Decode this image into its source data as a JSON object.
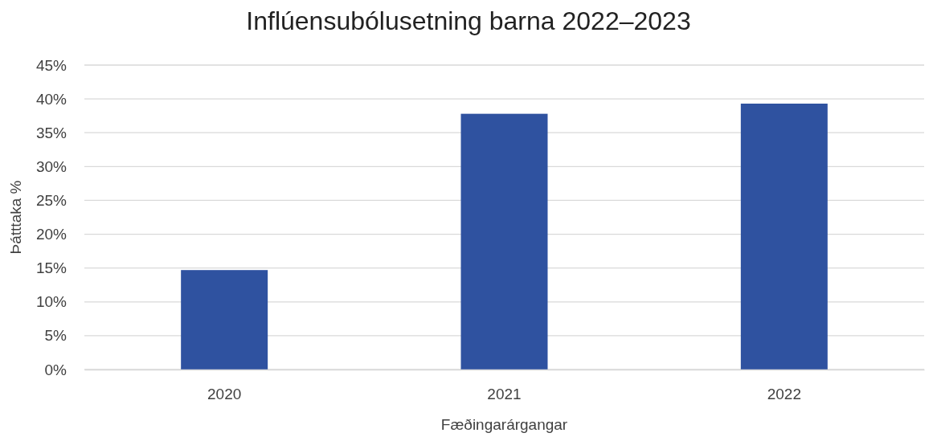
{
  "chart_data": {
    "type": "bar",
    "title": "Inflúensubólusetning barna 2022–2023",
    "xlabel": "Fæðingarárgangar",
    "ylabel": "Þátttaka %",
    "categories": [
      "2020",
      "2021",
      "2022"
    ],
    "values": [
      14.7,
      37.8,
      39.3
    ],
    "color": "#2f52a0",
    "ylim": [
      0,
      45
    ],
    "yticks": [
      {
        "value": 0,
        "label": "0%"
      },
      {
        "value": 5,
        "label": "5%"
      },
      {
        "value": 10,
        "label": "10%"
      },
      {
        "value": 15,
        "label": "15%"
      },
      {
        "value": 20,
        "label": "20%"
      },
      {
        "value": 25,
        "label": "25%"
      },
      {
        "value": 30,
        "label": "30%"
      },
      {
        "value": 35,
        "label": "35%"
      },
      {
        "value": 40,
        "label": "40%"
      },
      {
        "value": 45,
        "label": "45%"
      }
    ],
    "grid": "y"
  }
}
